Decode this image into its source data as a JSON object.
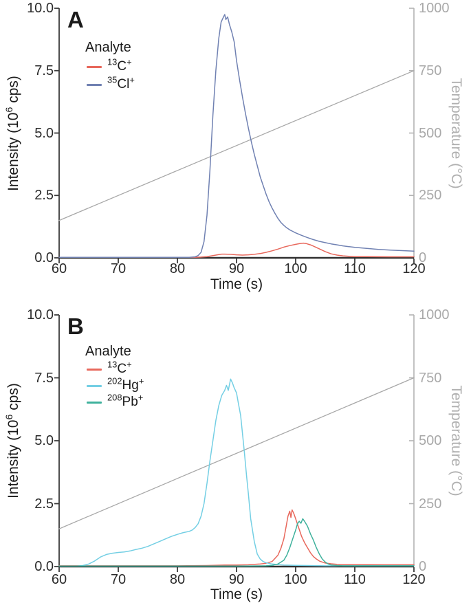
{
  "style": {
    "background": "#ffffff",
    "axis_color": "#3a3a3a",
    "secondary_axis_color": "#b3b3b3",
    "tick_label_color": "#2b2b2b",
    "secondary_tick_label_color": "#a9a9a9",
    "temperature_line_color": "#a8a8a8"
  },
  "chart_data": [
    {
      "type": "line",
      "panel_label": "A",
      "xlabel": "Time (s)",
      "ylabel_parts": {
        "prefix": "Intensity (10",
        "sup": "6",
        "suffix": " cps)"
      },
      "y2label": "Temperature (°C)",
      "xlim": [
        60,
        120
      ],
      "ylim": [
        0,
        10
      ],
      "y2lim": [
        0,
        1000
      ],
      "xticks": [
        "60",
        "70",
        "80",
        "90",
        "100",
        "110",
        "120"
      ],
      "yticks": [
        "0.0",
        "2.5",
        "5.0",
        "7.5",
        "10.0"
      ],
      "y2ticks": [
        "0",
        "250",
        "500",
        "750",
        "1000"
      ],
      "legend_title": "Analyte",
      "grid": false,
      "legend_position": "inside-top-left",
      "series": [
        {
          "name": "temperature-ramp",
          "color": "#a8a8a8",
          "axis": "y2",
          "legend": null,
          "points": [
            [
              60,
              150
            ],
            [
              120,
              750
            ]
          ]
        },
        {
          "name": "13C+",
          "color": "#e8685c",
          "axis": "y",
          "legend": {
            "sup": "13",
            "base": "C",
            "charge": "+"
          },
          "points": [
            [
              60,
              0.02
            ],
            [
              64,
              0.02
            ],
            [
              68,
              0.02
            ],
            [
              72,
              0.02
            ],
            [
              76,
              0.02
            ],
            [
              80,
              0.02
            ],
            [
              83,
              0.02
            ],
            [
              84,
              0.03
            ],
            [
              85,
              0.05
            ],
            [
              86,
              0.09
            ],
            [
              87,
              0.13
            ],
            [
              87.5,
              0.15
            ],
            [
              88,
              0.15
            ],
            [
              89,
              0.14
            ],
            [
              90,
              0.12
            ],
            [
              91,
              0.11
            ],
            [
              92,
              0.12
            ],
            [
              93,
              0.14
            ],
            [
              94,
              0.17
            ],
            [
              95,
              0.22
            ],
            [
              96,
              0.28
            ],
            [
              97,
              0.35
            ],
            [
              98,
              0.43
            ],
            [
              99,
              0.49
            ],
            [
              100,
              0.54
            ],
            [
              100.7,
              0.57
            ],
            [
              101.3,
              0.59
            ],
            [
              101.8,
              0.57
            ],
            [
              102.5,
              0.52
            ],
            [
              103,
              0.47
            ],
            [
              104,
              0.36
            ],
            [
              105,
              0.25
            ],
            [
              106,
              0.16
            ],
            [
              107,
              0.11
            ],
            [
              108,
              0.08
            ],
            [
              109,
              0.06
            ],
            [
              110,
              0.05
            ],
            [
              112,
              0.05
            ],
            [
              116,
              0.04
            ],
            [
              120,
              0.04
            ]
          ]
        },
        {
          "name": "35Cl+",
          "color": "#7081b2",
          "axis": "y",
          "legend": {
            "sup": "35",
            "base": "Cl",
            "charge": "+"
          },
          "points": [
            [
              60,
              0.02
            ],
            [
              65,
              0.02
            ],
            [
              70,
              0.02
            ],
            [
              75,
              0.02
            ],
            [
              80,
              0.02
            ],
            [
              82,
              0.02
            ],
            [
              83,
              0.04
            ],
            [
              83.5,
              0.09
            ],
            [
              84,
              0.22
            ],
            [
              84.5,
              0.65
            ],
            [
              85,
              1.7
            ],
            [
              85.5,
              3.5
            ],
            [
              86,
              5.7
            ],
            [
              86.5,
              7.5
            ],
            [
              87,
              8.8
            ],
            [
              87.4,
              9.45
            ],
            [
              87.7,
              9.6
            ],
            [
              88,
              9.75
            ],
            [
              88.2,
              9.55
            ],
            [
              88.5,
              9.65
            ],
            [
              88.8,
              9.35
            ],
            [
              89.2,
              9.05
            ],
            [
              89.6,
              8.65
            ],
            [
              90,
              7.9
            ],
            [
              90.5,
              7.15
            ],
            [
              91,
              6.45
            ],
            [
              91.5,
              5.8
            ],
            [
              92,
              5.2
            ],
            [
              92.5,
              4.65
            ],
            [
              93,
              4.15
            ],
            [
              93.5,
              3.7
            ],
            [
              94,
              3.25
            ],
            [
              94.5,
              2.9
            ],
            [
              95,
              2.55
            ],
            [
              95.5,
              2.25
            ],
            [
              96,
              2.0
            ],
            [
              96.5,
              1.78
            ],
            [
              97,
              1.58
            ],
            [
              97.5,
              1.42
            ],
            [
              98,
              1.3
            ],
            [
              98.5,
              1.2
            ],
            [
              99,
              1.12
            ],
            [
              99.5,
              1.06
            ],
            [
              100,
              1.0
            ],
            [
              101,
              0.9
            ],
            [
              102,
              0.81
            ],
            [
              103,
              0.73
            ],
            [
              104,
              0.66
            ],
            [
              105,
              0.61
            ],
            [
              106,
              0.56
            ],
            [
              107,
              0.52
            ],
            [
              108,
              0.48
            ],
            [
              109,
              0.45
            ],
            [
              110,
              0.42
            ],
            [
              112,
              0.38
            ],
            [
              114,
              0.34
            ],
            [
              116,
              0.31
            ],
            [
              118,
              0.29
            ],
            [
              120,
              0.27
            ]
          ]
        }
      ]
    },
    {
      "type": "line",
      "panel_label": "B",
      "xlabel": "Time (s)",
      "ylabel_parts": {
        "prefix": "Intensity (10",
        "sup": "6",
        "suffix": " cps)"
      },
      "y2label": "Temperature (°C)",
      "xlim": [
        60,
        120
      ],
      "ylim": [
        0,
        10
      ],
      "y2lim": [
        0,
        1000
      ],
      "xticks": [
        "60",
        "70",
        "80",
        "90",
        "100",
        "110",
        "120"
      ],
      "yticks": [
        "0.0",
        "2.5",
        "5.0",
        "7.5",
        "10.0"
      ],
      "y2ticks": [
        "0",
        "250",
        "500",
        "750",
        "1000"
      ],
      "legend_title": "Analyte",
      "grid": false,
      "legend_position": "inside-top-left",
      "series": [
        {
          "name": "temperature-ramp",
          "color": "#a8a8a8",
          "axis": "y2",
          "legend": null,
          "points": [
            [
              60,
              150
            ],
            [
              120,
              750
            ]
          ]
        },
        {
          "name": "13C+",
          "color": "#e8685c",
          "axis": "y",
          "legend": {
            "sup": "13",
            "base": "C",
            "charge": "+"
          },
          "points": [
            [
              60,
              0.03
            ],
            [
              65,
              0.03
            ],
            [
              70,
              0.03
            ],
            [
              75,
              0.03
            ],
            [
              80,
              0.03
            ],
            [
              85,
              0.04
            ],
            [
              88,
              0.06
            ],
            [
              90,
              0.06
            ],
            [
              92,
              0.07
            ],
            [
              94,
              0.1
            ],
            [
              95,
              0.13
            ],
            [
              96,
              0.2
            ],
            [
              97,
              0.45
            ],
            [
              97.5,
              0.72
            ],
            [
              98,
              1.1
            ],
            [
              98.4,
              1.6
            ],
            [
              98.7,
              2.0
            ],
            [
              99,
              2.2
            ],
            [
              99.2,
              1.95
            ],
            [
              99.4,
              2.25
            ],
            [
              99.7,
              2.1
            ],
            [
              100,
              1.9
            ],
            [
              100.5,
              1.55
            ],
            [
              101,
              1.2
            ],
            [
              101.5,
              0.95
            ],
            [
              102,
              0.75
            ],
            [
              102.5,
              0.55
            ],
            [
              103,
              0.4
            ],
            [
              103.5,
              0.3
            ],
            [
              104,
              0.22
            ],
            [
              105,
              0.14
            ],
            [
              106,
              0.11
            ],
            [
              107,
              0.09
            ],
            [
              108,
              0.08
            ],
            [
              110,
              0.08
            ],
            [
              115,
              0.07
            ],
            [
              120,
              0.07
            ]
          ]
        },
        {
          "name": "202Hg+",
          "color": "#74cfe4",
          "axis": "y",
          "legend": {
            "sup": "202",
            "base": "Hg",
            "charge": "+"
          },
          "points": [
            [
              60,
              0.02
            ],
            [
              63,
              0.02
            ],
            [
              64,
              0.04
            ],
            [
              65,
              0.1
            ],
            [
              66,
              0.22
            ],
            [
              67,
              0.38
            ],
            [
              68,
              0.48
            ],
            [
              69,
              0.53
            ],
            [
              70,
              0.56
            ],
            [
              71,
              0.58
            ],
            [
              72,
              0.62
            ],
            [
              73,
              0.68
            ],
            [
              74,
              0.73
            ],
            [
              75,
              0.8
            ],
            [
              76,
              0.9
            ],
            [
              77,
              1.0
            ],
            [
              78,
              1.1
            ],
            [
              79,
              1.2
            ],
            [
              80,
              1.28
            ],
            [
              81,
              1.35
            ],
            [
              82,
              1.4
            ],
            [
              82.5,
              1.45
            ],
            [
              83,
              1.55
            ],
            [
              83.5,
              1.7
            ],
            [
              84,
              2.0
            ],
            [
              84.5,
              2.5
            ],
            [
              85,
              3.3
            ],
            [
              85.5,
              4.2
            ],
            [
              86,
              5.0
            ],
            [
              86.5,
              5.8
            ],
            [
              87,
              6.4
            ],
            [
              87.5,
              6.8
            ],
            [
              88,
              7.0
            ],
            [
              88.3,
              7.2
            ],
            [
              88.6,
              7.0
            ],
            [
              89,
              7.45
            ],
            [
              89.3,
              7.3
            ],
            [
              89.6,
              7.1
            ],
            [
              90,
              6.9
            ],
            [
              90.3,
              6.5
            ],
            [
              90.7,
              6.0
            ],
            [
              91,
              5.3
            ],
            [
              91.3,
              4.6
            ],
            [
              91.7,
              3.6
            ],
            [
              92,
              2.9
            ],
            [
              92.4,
              1.9
            ],
            [
              93,
              1.0
            ],
            [
              93.5,
              0.5
            ],
            [
              94,
              0.3
            ],
            [
              94.5,
              0.2
            ],
            [
              95,
              0.15
            ],
            [
              96,
              0.1
            ],
            [
              97,
              0.08
            ],
            [
              98,
              0.06
            ],
            [
              100,
              0.05
            ],
            [
              105,
              0.03
            ],
            [
              110,
              0.03
            ],
            [
              120,
              0.03
            ]
          ]
        },
        {
          "name": "208Pb+",
          "color": "#3eb19c",
          "axis": "y",
          "legend": {
            "sup": "208",
            "base": "Pb",
            "charge": "+"
          },
          "points": [
            [
              60,
              0.02
            ],
            [
              70,
              0.02
            ],
            [
              80,
              0.02
            ],
            [
              90,
              0.02
            ],
            [
              95,
              0.03
            ],
            [
              96,
              0.05
            ],
            [
              97,
              0.1
            ],
            [
              98,
              0.25
            ],
            [
              98.5,
              0.45
            ],
            [
              99,
              0.75
            ],
            [
              99.5,
              1.1
            ],
            [
              100,
              1.45
            ],
            [
              100.3,
              1.7
            ],
            [
              100.6,
              1.8
            ],
            [
              100.9,
              1.72
            ],
            [
              101.2,
              1.9
            ],
            [
              101.5,
              1.8
            ],
            [
              102,
              1.6
            ],
            [
              102.5,
              1.3
            ],
            [
              103,
              1.05
            ],
            [
              103.5,
              0.75
            ],
            [
              104,
              0.5
            ],
            [
              104.5,
              0.3
            ],
            [
              105,
              0.18
            ],
            [
              105.5,
              0.1
            ],
            [
              106,
              0.06
            ],
            [
              107,
              0.04
            ],
            [
              108,
              0.03
            ],
            [
              110,
              0.03
            ],
            [
              115,
              0.03
            ],
            [
              120,
              0.03
            ]
          ]
        }
      ]
    }
  ]
}
